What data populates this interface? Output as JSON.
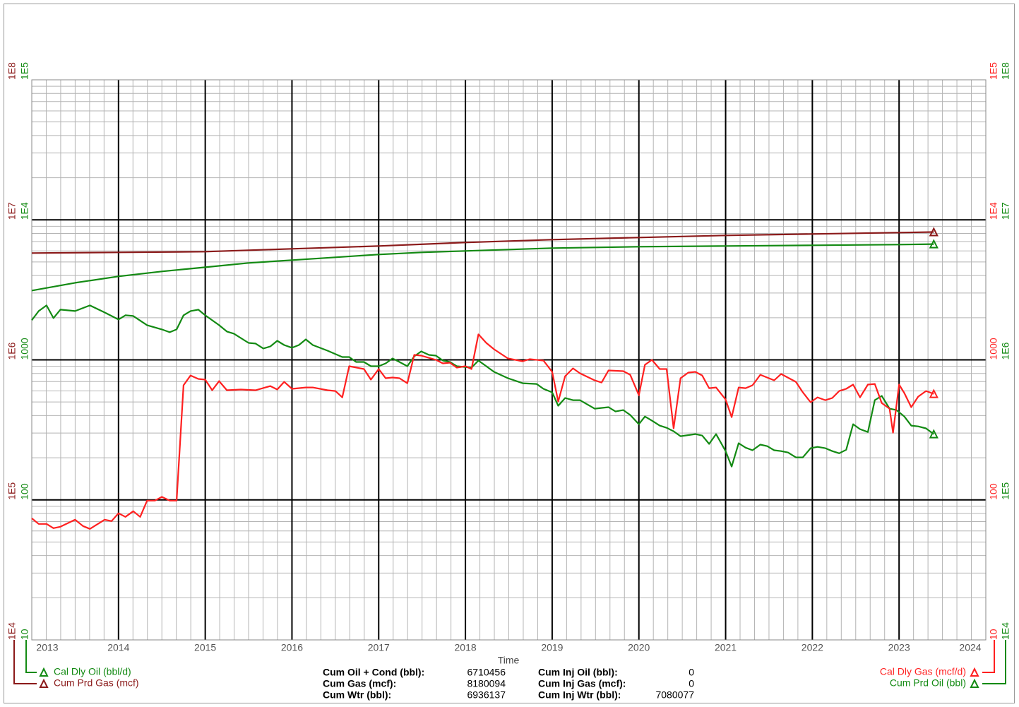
{
  "chart_data": {
    "type": "line",
    "xlabel": "Time",
    "xlim": [
      2013,
      2024
    ],
    "xticks": [
      2013,
      2014,
      2015,
      2016,
      2017,
      2018,
      2019,
      2020,
      2021,
      2022,
      2023,
      2024
    ],
    "log_scale": true,
    "grid": true,
    "axes": {
      "left_inner": {
        "color": "#138a13",
        "lim": [
          10,
          100000
        ],
        "ticks": [
          10,
          100,
          1000,
          {
            "value": 10000,
            "label": "1E4"
          },
          {
            "value": 100000,
            "label": "1E5"
          }
        ]
      },
      "left_outer": {
        "color": "#8b1a1a",
        "lim": [
          10000,
          100000000
        ],
        "ticks": [
          {
            "value": 10000,
            "label": "1E4"
          },
          {
            "value": 100000,
            "label": "1E5"
          },
          {
            "value": 1000000,
            "label": "1E6"
          },
          {
            "value": 10000000,
            "label": "1E7"
          },
          {
            "value": 100000000,
            "label": "1E8"
          }
        ]
      },
      "right_inner": {
        "color": "#ff2020",
        "lim": [
          10,
          100000
        ],
        "ticks": [
          10,
          100,
          1000,
          {
            "value": 10000,
            "label": "1E4"
          },
          {
            "value": 100000,
            "label": "1E5"
          }
        ]
      },
      "right_outer": {
        "color": "#138a13",
        "lim": [
          10000,
          100000000
        ],
        "ticks": [
          {
            "value": 10000,
            "label": "1E4"
          },
          {
            "value": 100000,
            "label": "1E5"
          },
          {
            "value": 1000000,
            "label": "1E6"
          },
          {
            "value": 10000000,
            "label": "1E7"
          },
          {
            "value": 100000000,
            "label": "1E8"
          }
        ]
      }
    },
    "series": [
      {
        "name": "Cal Dly Oil (bbl/d)",
        "color": "#138a13",
        "axis": "left_inner",
        "legend": "left",
        "x": [
          2013.0,
          2013.08,
          2013.17,
          2013.25,
          2013.33,
          2013.5,
          2013.67,
          2013.84,
          2014.0,
          2014.08,
          2014.17,
          2014.33,
          2014.5,
          2014.59,
          2014.67,
          2014.75,
          2014.83,
          2014.92,
          2015.0,
          2015.16,
          2015.25,
          2015.33,
          2015.5,
          2015.58,
          2015.67,
          2015.75,
          2015.83,
          2015.91,
          2016.0,
          2016.08,
          2016.16,
          2016.24,
          2016.41,
          2016.58,
          2016.66,
          2016.74,
          2016.83,
          2016.91,
          2017.0,
          2017.08,
          2017.16,
          2017.24,
          2017.33,
          2017.41,
          2017.49,
          2017.58,
          2017.66,
          2017.74,
          2017.82,
          2017.9,
          2018.07,
          2018.15,
          2018.24,
          2018.33,
          2018.49,
          2018.66,
          2018.82,
          2018.9,
          2019.0,
          2019.07,
          2019.15,
          2019.24,
          2019.32,
          2019.49,
          2019.65,
          2019.73,
          2019.82,
          2019.9,
          2020.0,
          2020.07,
          2020.15,
          2020.24,
          2020.32,
          2020.4,
          2020.48,
          2020.65,
          2020.73,
          2020.81,
          2020.89,
          2021.0,
          2021.07,
          2021.15,
          2021.23,
          2021.31,
          2021.4,
          2021.48,
          2021.56,
          2021.64,
          2021.72,
          2021.81,
          2021.89,
          2021.98,
          2022.06,
          2022.15,
          2022.23,
          2022.31,
          2022.39,
          2022.47,
          2022.55,
          2022.64,
          2022.72,
          2022.8,
          2022.89,
          2022.97,
          2023.06,
          2023.14,
          2023.22,
          2023.31,
          2023.4
        ],
        "values": [
          1918,
          2231,
          2448,
          1986,
          2283,
          2231,
          2448,
          2180,
          1941,
          2080,
          2056,
          1768,
          1649,
          1574,
          1649,
          2080,
          2231,
          2283,
          2080,
          1768,
          1593,
          1538,
          1322,
          1307,
          1205,
          1247,
          1369,
          1276,
          1219,
          1276,
          1401,
          1276,
          1163,
          1047,
          1047,
          966,
          966,
          901,
          901,
          944,
          1023,
          966,
          901,
          1060,
          1150,
          1085,
          1072,
          988,
          966,
          901,
          880,
          988,
          901,
          821,
          739,
          681,
          673,
          621,
          586,
          470,
          534,
          515,
          515,
          448,
          459,
          428,
          438,
          404,
          347,
          394,
          368,
          339,
          327,
          309,
          285,
          295,
          288,
          251,
          295,
          223,
          173,
          254,
          236,
          226,
          248,
          242,
          226,
          223,
          218,
          201,
          201,
          234,
          239,
          234,
          223,
          215,
          228,
          347,
          320,
          305,
          515,
          553,
          448,
          438,
          394,
          339,
          335,
          324,
          295
        ]
      },
      {
        "name": "Cum Prd Gas (mcf)",
        "color": "#8b1a1a",
        "axis": "left_outer",
        "legend": "left",
        "x": [
          2013.0,
          2014.0,
          2015.0,
          2016.0,
          2017.0,
          2018.0,
          2019.0,
          2020.0,
          2021.0,
          2022.0,
          2023.0,
          2023.4
        ],
        "values": [
          5789000,
          5857000,
          5926000,
          6207000,
          6503000,
          6893000,
          7222000,
          7476000,
          7742000,
          7925000,
          8110000,
          8180094
        ]
      },
      {
        "name": "Cal Dly Gas (mcf/d)",
        "color": "#ff2020",
        "axis": "right_inner",
        "legend": "right",
        "x": [
          2013.0,
          2013.08,
          2013.17,
          2013.25,
          2013.33,
          2013.5,
          2013.59,
          2013.67,
          2013.84,
          2013.92,
          2014.0,
          2014.08,
          2014.17,
          2014.25,
          2014.33,
          2014.42,
          2014.5,
          2014.59,
          2014.67,
          2014.75,
          2014.83,
          2014.92,
          2015.0,
          2015.08,
          2015.16,
          2015.25,
          2015.41,
          2015.58,
          2015.75,
          2015.83,
          2015.91,
          2016.0,
          2016.16,
          2016.24,
          2016.41,
          2016.5,
          2016.58,
          2016.66,
          2016.83,
          2016.91,
          2017.0,
          2017.08,
          2017.16,
          2017.24,
          2017.33,
          2017.41,
          2017.49,
          2017.66,
          2017.74,
          2017.82,
          2017.9,
          2018.0,
          2018.07,
          2018.15,
          2018.24,
          2018.33,
          2018.49,
          2018.66,
          2018.74,
          2018.9,
          2019.0,
          2019.07,
          2019.15,
          2019.24,
          2019.32,
          2019.49,
          2019.57,
          2019.65,
          2019.82,
          2019.9,
          2020.0,
          2020.07,
          2020.15,
          2020.24,
          2020.32,
          2020.4,
          2020.48,
          2020.57,
          2020.65,
          2020.73,
          2020.81,
          2020.89,
          2021.0,
          2021.07,
          2021.15,
          2021.23,
          2021.31,
          2021.4,
          2021.56,
          2021.64,
          2021.81,
          2021.89,
          2021.98,
          2022.06,
          2022.15,
          2022.23,
          2022.31,
          2022.39,
          2022.47,
          2022.55,
          2022.64,
          2022.72,
          2022.8,
          2022.89,
          2022.93,
          2023.0,
          2023.06,
          2023.14,
          2023.22,
          2023.31,
          2023.4
        ],
        "values": [
          73.9,
          67.3,
          67.3,
          62.8,
          64.3,
          72.2,
          65.0,
          62.1,
          72.2,
          70.5,
          80.2,
          75.6,
          83.0,
          75.6,
          98.8,
          98.8,
          105,
          98.8,
          98.8,
          658,
          774,
          731,
          722,
          607,
          705,
          607,
          614,
          607,
          650,
          614,
          697,
          621,
          635,
          635,
          607,
          599,
          540,
          901,
          860,
          722,
          860,
          739,
          748,
          739,
          681,
          1085,
          1072,
          1000,
          944,
          955,
          880,
          901,
          860,
          1520,
          1322,
          1191,
          1023,
          977,
          1012,
          988,
          821,
          504,
          765,
          870,
          802,
          714,
          689,
          840,
          830,
          783,
          559,
          922,
          1000,
          860,
          860,
          324,
          739,
          811,
          821,
          774,
          628,
          635,
          521,
          390,
          635,
          628,
          658,
          783,
          714,
          793,
          697,
          586,
          498,
          540,
          515,
          534,
          599,
          621,
          666,
          540,
          666,
          673,
          492,
          448,
          302,
          666,
          579,
          459,
          546,
          599,
          572
        ]
      },
      {
        "name": "Cum Prd Oil (bbl)",
        "color": "#138a13",
        "axis": "right_outer",
        "legend": "right",
        "x": [
          2013.0,
          2013.5,
          2014.0,
          2014.5,
          2015.0,
          2015.5,
          2016.0,
          2016.5,
          2017.0,
          2017.5,
          2018.0,
          2018.5,
          2019.0,
          2020.0,
          2021.0,
          2022.0,
          2023.0,
          2023.4
        ],
        "values": [
          3126000,
          3552000,
          3945000,
          4279000,
          4587000,
          4919000,
          5154000,
          5399000,
          5655000,
          5857000,
          5996000,
          6138000,
          6281000,
          6428000,
          6503000,
          6580000,
          6657000,
          6710456
        ]
      }
    ],
    "stats": [
      {
        "label": "Cum Oil + Cond (bbl):",
        "value": 6710456
      },
      {
        "label": "Cum Gas (mcf):",
        "value": 8180094
      },
      {
        "label": "Cum Wtr (bbl):",
        "value": 6936137
      },
      {
        "label": "Cum Inj Oil (bbl):",
        "value": 0
      },
      {
        "label": "Cum Inj Gas (mcf):",
        "value": 0
      },
      {
        "label": "Cum Inj Wtr (bbl):",
        "value": 7080077
      }
    ]
  }
}
